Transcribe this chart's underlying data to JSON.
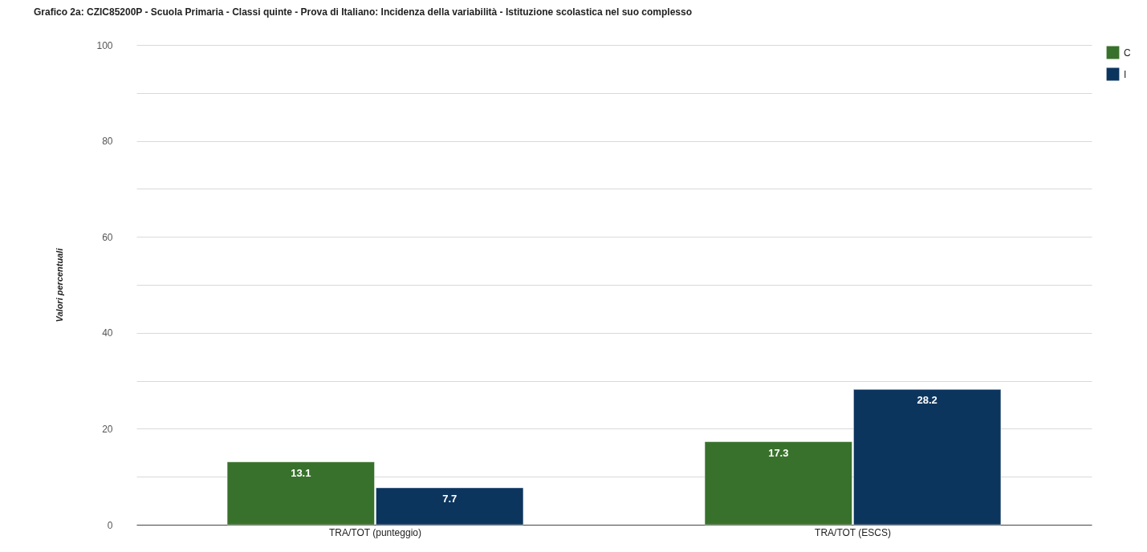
{
  "chart_data": {
    "type": "bar",
    "title": "Grafico 2a: CZIC85200P - Scuola Primaria - Classi quinte - Prova di Italiano: Incidenza della variabilità - Istituzione scolastica nel suo complesso",
    "ylabel": "Valori percentuali",
    "categories": [
      "TRA/TOT (punteggio)",
      "TRA/TOT (ESCS)"
    ],
    "series": [
      {
        "name": "C",
        "color": "#38712b",
        "values": [
          13.1,
          17.3
        ]
      },
      {
        "name": "I",
        "color": "#0c355e",
        "values": [
          7.7,
          28.2
        ]
      }
    ],
    "ylim": [
      0,
      100
    ],
    "yticks": [
      0,
      {
        "value": 10,
        "label": null
      },
      20,
      {
        "value": 30,
        "label": null
      },
      40,
      {
        "value": 50,
        "label": null
      },
      60,
      {
        "value": 70,
        "label": null
      },
      80,
      {
        "value": 90,
        "label": null
      },
      100
    ],
    "grid": true,
    "legend": "right",
    "data_labels": true
  }
}
